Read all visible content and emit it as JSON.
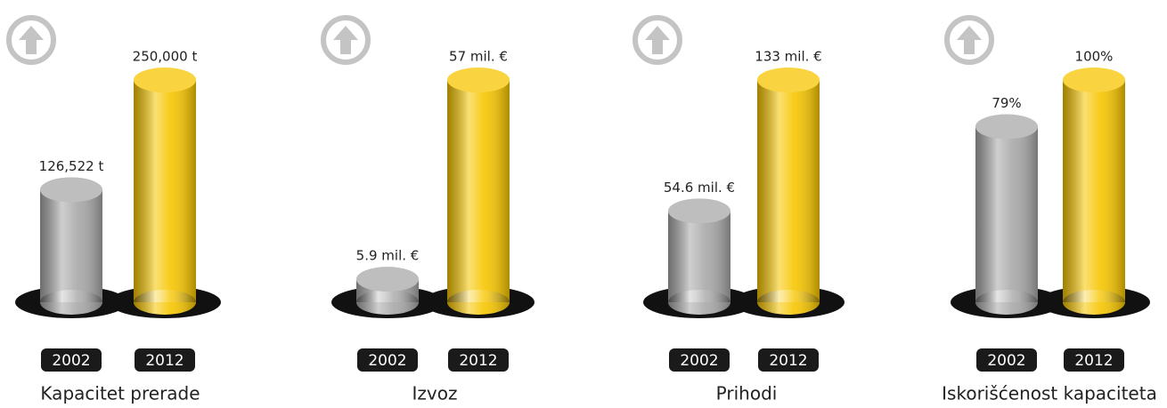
{
  "chart_data": [
    {
      "type": "bar",
      "title": "Kapacitet prerade",
      "categories": [
        "2002",
        "2012"
      ],
      "values": [
        126522,
        250000
      ],
      "value_labels": [
        "126,522 t",
        "250,000 t"
      ],
      "colors": [
        "#a8a8a8",
        "#f7c600"
      ]
    },
    {
      "type": "bar",
      "title": "Izvoz",
      "categories": [
        "2002",
        "2012"
      ],
      "values": [
        5.9,
        57
      ],
      "value_labels": [
        "5.9 mil. €",
        "57 mil. €"
      ],
      "colors": [
        "#a8a8a8",
        "#f7c600"
      ]
    },
    {
      "type": "bar",
      "title": "Prihodi",
      "categories": [
        "2002",
        "2012"
      ],
      "values": [
        54.6,
        133
      ],
      "value_labels": [
        "54.6 mil. €",
        "133 mil. €"
      ],
      "colors": [
        "#a8a8a8",
        "#f7c600"
      ]
    },
    {
      "type": "bar",
      "title": "Iskorišćenost kapaciteta",
      "categories": [
        "2002",
        "2012"
      ],
      "values": [
        79,
        100
      ],
      "value_labels": [
        "79%",
        "100%"
      ],
      "colors": [
        "#a8a8a8",
        "#f7c600"
      ]
    }
  ]
}
